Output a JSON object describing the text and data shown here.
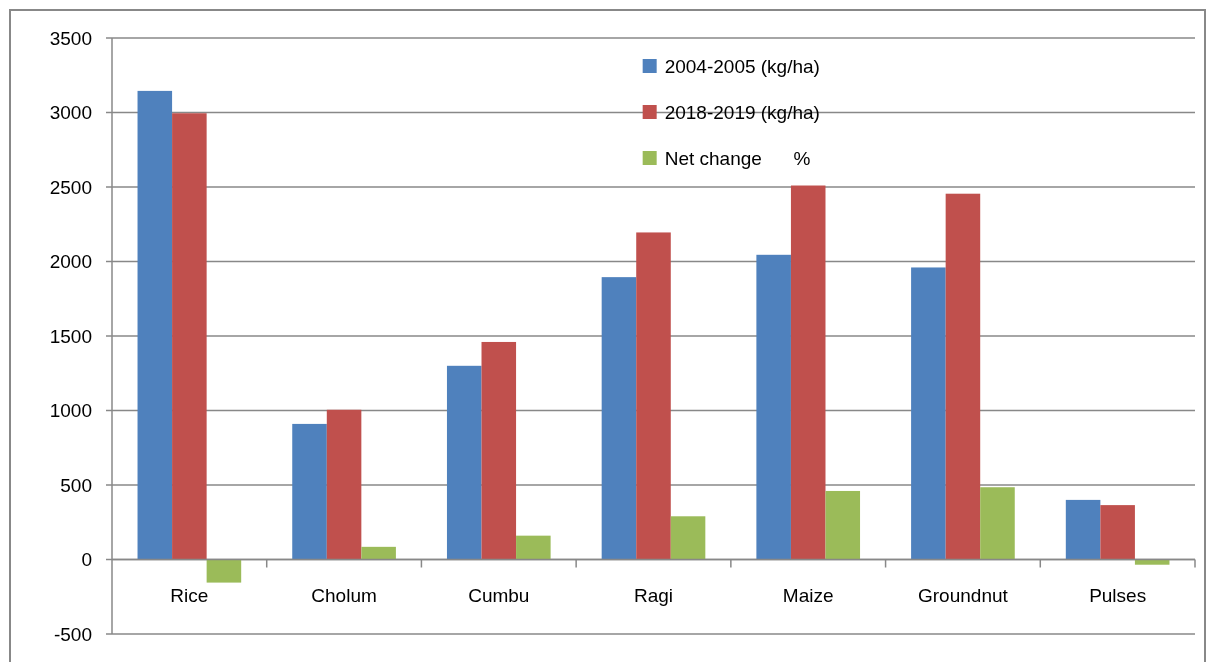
{
  "chart_data": {
    "type": "bar",
    "categories": [
      "Rice",
      "Cholum",
      "Cumbu",
      "Ragi",
      "Maize",
      "Groundnut",
      "Pulses"
    ],
    "series": [
      {
        "name": "2004-2005 (kg/ha)",
        "color": "#4f81bd",
        "values": [
          3145,
          910,
          1300,
          1895,
          2045,
          1960,
          400
        ]
      },
      {
        "name": "2018-2019 (kg/ha)",
        "color": "#c0504d",
        "values": [
          2995,
          1005,
          1460,
          2195,
          2510,
          2455,
          365
        ]
      },
      {
        "name": "Net change      %",
        "color": "#9bbb59",
        "values": [
          -155,
          85,
          160,
          290,
          460,
          485,
          -35
        ]
      }
    ],
    "ylim": [
      -500,
      3500
    ],
    "yticks": [
      -500,
      0,
      500,
      1000,
      1500,
      2000,
      2500,
      3000,
      3500
    ],
    "grid": "y",
    "legend": "top right"
  }
}
